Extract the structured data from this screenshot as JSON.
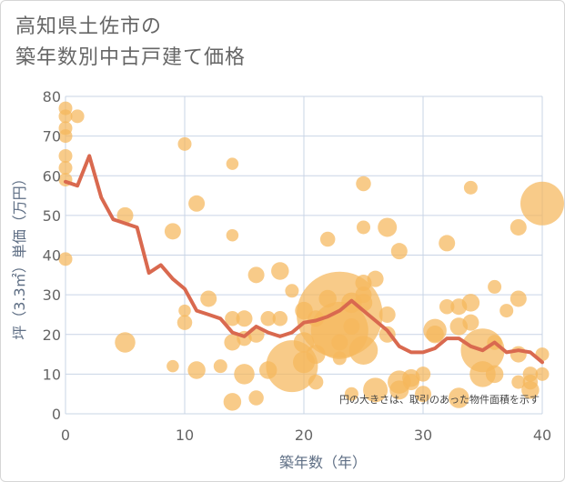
{
  "title_line1": "高知県土佐市の",
  "title_line2": "築年数別中古戸建て価格",
  "chart_data": {
    "type": "scatter",
    "xlabel": "築年数（年）",
    "ylabel": "坪（3.3㎡）単価（万円）",
    "xlim": [
      0,
      40
    ],
    "ylim": [
      0,
      80
    ],
    "x_ticks": [
      "0",
      "10",
      "20",
      "30",
      "40"
    ],
    "y_ticks": [
      "0",
      "10",
      "20",
      "30",
      "40",
      "50",
      "60",
      "70",
      "80"
    ],
    "note": "円の大きさは、取引のあった物件面積を示す",
    "grid": true,
    "colors": {
      "bubble": "#f5b75c",
      "line": "#d9694f",
      "grid": "#c9d4e6"
    },
    "bubbles": [
      {
        "x": 0,
        "y": 77,
        "s": 1
      },
      {
        "x": 0,
        "y": 75,
        "s": 1
      },
      {
        "x": 0,
        "y": 72,
        "s": 1
      },
      {
        "x": 0,
        "y": 70,
        "s": 1
      },
      {
        "x": 0,
        "y": 65,
        "s": 1
      },
      {
        "x": 0,
        "y": 62,
        "s": 1
      },
      {
        "x": 0,
        "y": 59,
        "s": 1
      },
      {
        "x": 0,
        "y": 39,
        "s": 1
      },
      {
        "x": 1,
        "y": 75,
        "s": 1
      },
      {
        "x": 5,
        "y": 50,
        "s": 1.2
      },
      {
        "x": 5,
        "y": 18,
        "s": 1.5
      },
      {
        "x": 9,
        "y": 46,
        "s": 1.2
      },
      {
        "x": 9,
        "y": 12,
        "s": 0.9
      },
      {
        "x": 10,
        "y": 68,
        "s": 1
      },
      {
        "x": 10,
        "y": 23,
        "s": 1.1
      },
      {
        "x": 10,
        "y": 26,
        "s": 0.9
      },
      {
        "x": 11,
        "y": 53,
        "s": 1.2
      },
      {
        "x": 11,
        "y": 11,
        "s": 1.3
      },
      {
        "x": 12,
        "y": 29,
        "s": 1.2
      },
      {
        "x": 13,
        "y": 12,
        "s": 1
      },
      {
        "x": 14,
        "y": 63,
        "s": 0.9
      },
      {
        "x": 14,
        "y": 45,
        "s": 0.9
      },
      {
        "x": 14,
        "y": 24,
        "s": 1.1
      },
      {
        "x": 14,
        "y": 18,
        "s": 1.2
      },
      {
        "x": 14,
        "y": 3,
        "s": 1.3
      },
      {
        "x": 15,
        "y": 24,
        "s": 1.2
      },
      {
        "x": 15,
        "y": 19,
        "s": 1.1
      },
      {
        "x": 15,
        "y": 10,
        "s": 1.5
      },
      {
        "x": 16,
        "y": 35,
        "s": 1.2
      },
      {
        "x": 16,
        "y": 20,
        "s": 1.2
      },
      {
        "x": 16,
        "y": 4,
        "s": 1.1
      },
      {
        "x": 17,
        "y": 24,
        "s": 1.1
      },
      {
        "x": 17,
        "y": 11,
        "s": 1.3
      },
      {
        "x": 18,
        "y": 36,
        "s": 1.3
      },
      {
        "x": 18,
        "y": 24,
        "s": 1.1
      },
      {
        "x": 19,
        "y": 31,
        "s": 1
      },
      {
        "x": 19,
        "y": 12,
        "s": 3.8
      },
      {
        "x": 20,
        "y": 18,
        "s": 1.5
      },
      {
        "x": 20,
        "y": 13,
        "s": 1.6
      },
      {
        "x": 20,
        "y": 26,
        "s": 1.3
      },
      {
        "x": 21,
        "y": 15,
        "s": 1.4
      },
      {
        "x": 21,
        "y": 8,
        "s": 1.1
      },
      {
        "x": 21,
        "y": 24,
        "s": 1.2
      },
      {
        "x": 22,
        "y": 44,
        "s": 1.1
      },
      {
        "x": 22,
        "y": 29,
        "s": 1.3
      },
      {
        "x": 23,
        "y": 25,
        "s": 6.3
      },
      {
        "x": 23,
        "y": 21,
        "s": 4.2
      },
      {
        "x": 23,
        "y": 14,
        "s": 1
      },
      {
        "x": 23,
        "y": 18,
        "s": 1.2
      },
      {
        "x": 24,
        "y": 28,
        "s": 1.5
      },
      {
        "x": 24,
        "y": 22,
        "s": 1.2
      },
      {
        "x": 24,
        "y": 5,
        "s": 1
      },
      {
        "x": 25,
        "y": 58,
        "s": 1.1
      },
      {
        "x": 25,
        "y": 47,
        "s": 1
      },
      {
        "x": 25,
        "y": 33,
        "s": 1.2
      },
      {
        "x": 25,
        "y": 30,
        "s": 1.2
      },
      {
        "x": 25,
        "y": 28,
        "s": 1.3
      },
      {
        "x": 25,
        "y": 16,
        "s": 2.1
      },
      {
        "x": 26,
        "y": 34,
        "s": 1.2
      },
      {
        "x": 26,
        "y": 6,
        "s": 1.8
      },
      {
        "x": 27,
        "y": 47,
        "s": 1.4
      },
      {
        "x": 27,
        "y": 25,
        "s": 1.2
      },
      {
        "x": 27,
        "y": 20,
        "s": 1.2
      },
      {
        "x": 28,
        "y": 41,
        "s": 1.2
      },
      {
        "x": 28,
        "y": 8,
        "s": 1.7
      },
      {
        "x": 28,
        "y": 6,
        "s": 1.4
      },
      {
        "x": 29,
        "y": 9,
        "s": 1.3
      },
      {
        "x": 29,
        "y": 8,
        "s": 1.2
      },
      {
        "x": 30,
        "y": 10,
        "s": 1.1
      },
      {
        "x": 30,
        "y": 5,
        "s": 1.2
      },
      {
        "x": 31,
        "y": 21,
        "s": 1.7
      },
      {
        "x": 31,
        "y": 20,
        "s": 1.3
      },
      {
        "x": 32,
        "y": 43,
        "s": 1.2
      },
      {
        "x": 32,
        "y": 27,
        "s": 1.1
      },
      {
        "x": 33,
        "y": 27,
        "s": 1.2
      },
      {
        "x": 33,
        "y": 22,
        "s": 1.3
      },
      {
        "x": 33,
        "y": 4,
        "s": 1.5
      },
      {
        "x": 34,
        "y": 57,
        "s": 1
      },
      {
        "x": 34,
        "y": 28,
        "s": 1.3
      },
      {
        "x": 34,
        "y": 23,
        "s": 1.2
      },
      {
        "x": 35,
        "y": 16,
        "s": 3.2
      },
      {
        "x": 35,
        "y": 10,
        "s": 1.9
      },
      {
        "x": 36,
        "y": 32,
        "s": 1
      },
      {
        "x": 36,
        "y": 18,
        "s": 1.1
      },
      {
        "x": 36,
        "y": 10,
        "s": 1.3
      },
      {
        "x": 37,
        "y": 26,
        "s": 1
      },
      {
        "x": 38,
        "y": 47,
        "s": 1.2
      },
      {
        "x": 38,
        "y": 29,
        "s": 1.2
      },
      {
        "x": 38,
        "y": 15,
        "s": 1.2
      },
      {
        "x": 38,
        "y": 8,
        "s": 1
      },
      {
        "x": 39,
        "y": 10,
        "s": 1.1
      },
      {
        "x": 39,
        "y": 8,
        "s": 1.1
      },
      {
        "x": 39,
        "y": 6,
        "s": 1.3
      },
      {
        "x": 40,
        "y": 53,
        "s": 3.2
      },
      {
        "x": 40,
        "y": 15,
        "s": 1
      },
      {
        "x": 40,
        "y": 10,
        "s": 1
      }
    ],
    "line": {
      "x": [
        0,
        1,
        2,
        3,
        4,
        5,
        6,
        7,
        8,
        9,
        10,
        11,
        12,
        13,
        14,
        15,
        16,
        17,
        18,
        19,
        20,
        21,
        22,
        23,
        24,
        25,
        26,
        27,
        28,
        29,
        30,
        31,
        32,
        33,
        34,
        35,
        36,
        37,
        38,
        39,
        40
      ],
      "y": [
        58.5,
        57.5,
        65,
        54.5,
        49,
        48,
        47,
        35.5,
        37.5,
        34,
        31.5,
        26,
        25,
        24,
        20.5,
        19.5,
        22,
        20.5,
        19.5,
        20.5,
        23,
        23.5,
        24.5,
        26,
        28.5,
        26,
        23.5,
        21,
        17,
        15.5,
        15.5,
        16.5,
        19,
        19,
        17,
        16,
        18,
        15.5,
        16,
        15.5,
        13
      ]
    }
  }
}
